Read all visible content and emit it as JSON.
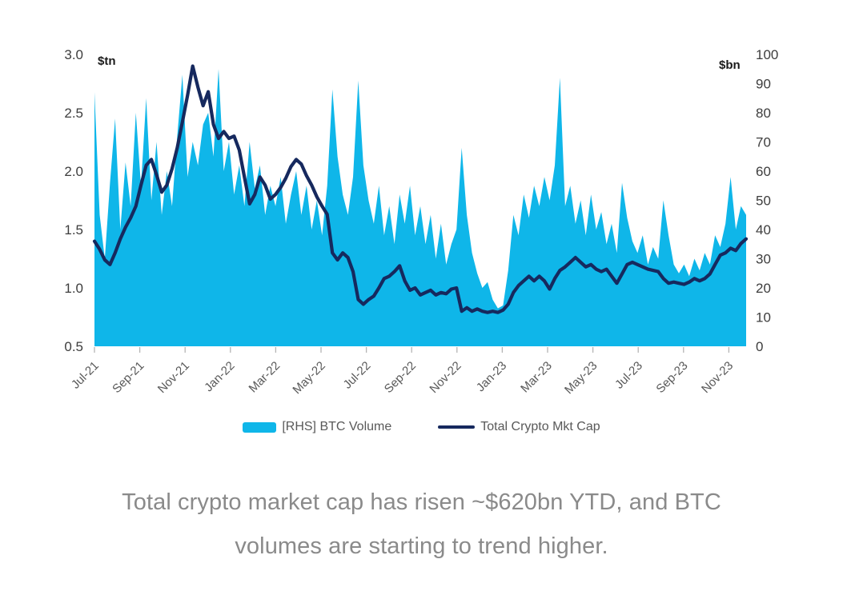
{
  "chart_data": {
    "type": "area",
    "description": "Dual-axis combo: light blue area = weekly BTC spot volume (right axis, $bn); dark navy line = total crypto market cap (left axis, $tn); weekly points Jul-2021 to Nov-2023",
    "x_tick_labels": [
      "Jul-21",
      "Sep-21",
      "Nov-21",
      "Jan-22",
      "Mar-22",
      "May-22",
      "Jul-22",
      "Sep-22",
      "Nov-22",
      "Jan-23",
      "Mar-23",
      "May-23",
      "Jul-23",
      "Sep-23",
      "Nov-23"
    ],
    "left_axis": {
      "unit": "$tn",
      "min": 0.5,
      "max": 3.0,
      "ticks": [
        3.0,
        2.5,
        2.0,
        1.5,
        1.0,
        0.5
      ]
    },
    "right_axis": {
      "unit": "$bn",
      "min": 0,
      "max": 100,
      "ticks": [
        100,
        90,
        80,
        70,
        60,
        50,
        40,
        30,
        20,
        10,
        0
      ]
    },
    "grid": false,
    "legend_position": "bottom-center",
    "series": [
      {
        "name": "[RHS] BTC Volume",
        "type": "area",
        "axis": "right",
        "color": "#0FB6E9",
        "values": [
          87,
          45,
          30,
          56,
          78,
          40,
          63,
          48,
          80,
          55,
          85,
          50,
          70,
          45,
          60,
          48,
          72,
          93,
          58,
          70,
          62,
          76,
          80,
          65,
          95,
          60,
          70,
          52,
          62,
          48,
          70,
          54,
          62,
          45,
          55,
          48,
          58,
          42,
          52,
          60,
          45,
          55,
          40,
          50,
          38,
          55,
          88,
          65,
          52,
          45,
          58,
          91,
          62,
          50,
          42,
          55,
          38,
          48,
          35,
          52,
          42,
          55,
          38,
          48,
          35,
          45,
          30,
          42,
          28,
          35,
          40,
          68,
          45,
          32,
          25,
          20,
          22,
          16,
          13,
          14,
          26,
          45,
          38,
          52,
          44,
          55,
          48,
          58,
          50,
          62,
          92,
          48,
          55,
          42,
          50,
          38,
          52,
          40,
          46,
          35,
          42,
          32,
          56,
          44,
          36,
          32,
          38,
          28,
          34,
          30,
          50,
          38,
          28,
          25,
          28,
          24,
          30,
          26,
          32,
          28,
          38,
          34,
          42,
          58,
          40,
          48,
          45
        ]
      },
      {
        "name": "Total Crypto Mkt Cap",
        "type": "line",
        "axis": "left",
        "color": "#16295E",
        "values": [
          1.4,
          1.33,
          1.24,
          1.2,
          1.3,
          1.42,
          1.52,
          1.6,
          1.7,
          1.88,
          2.05,
          2.1,
          1.97,
          1.82,
          1.88,
          2.02,
          2.2,
          2.42,
          2.65,
          2.9,
          2.72,
          2.56,
          2.68,
          2.4,
          2.28,
          2.34,
          2.28,
          2.3,
          2.18,
          1.95,
          1.72,
          1.8,
          1.95,
          1.88,
          1.76,
          1.8,
          1.86,
          1.94,
          2.04,
          2.1,
          2.06,
          1.96,
          1.88,
          1.78,
          1.7,
          1.63,
          1.3,
          1.24,
          1.3,
          1.26,
          1.14,
          0.9,
          0.86,
          0.9,
          0.93,
          1.0,
          1.08,
          1.1,
          1.14,
          1.19,
          1.06,
          0.98,
          1.0,
          0.94,
          0.96,
          0.98,
          0.94,
          0.96,
          0.95,
          0.99,
          1.0,
          0.8,
          0.83,
          0.8,
          0.82,
          0.8,
          0.79,
          0.8,
          0.79,
          0.81,
          0.86,
          0.96,
          1.02,
          1.06,
          1.1,
          1.06,
          1.1,
          1.06,
          0.99,
          1.08,
          1.15,
          1.18,
          1.22,
          1.26,
          1.22,
          1.18,
          1.2,
          1.16,
          1.14,
          1.16,
          1.1,
          1.04,
          1.12,
          1.2,
          1.22,
          1.2,
          1.18,
          1.16,
          1.15,
          1.14,
          1.08,
          1.04,
          1.05,
          1.04,
          1.03,
          1.05,
          1.08,
          1.06,
          1.08,
          1.12,
          1.2,
          1.28,
          1.3,
          1.34,
          1.32,
          1.38,
          1.42
        ]
      }
    ]
  },
  "caption": {
    "line1": "Total crypto market cap has risen ~$620bn YTD, and BTC",
    "line2": "volumes are starting to trend higher."
  }
}
